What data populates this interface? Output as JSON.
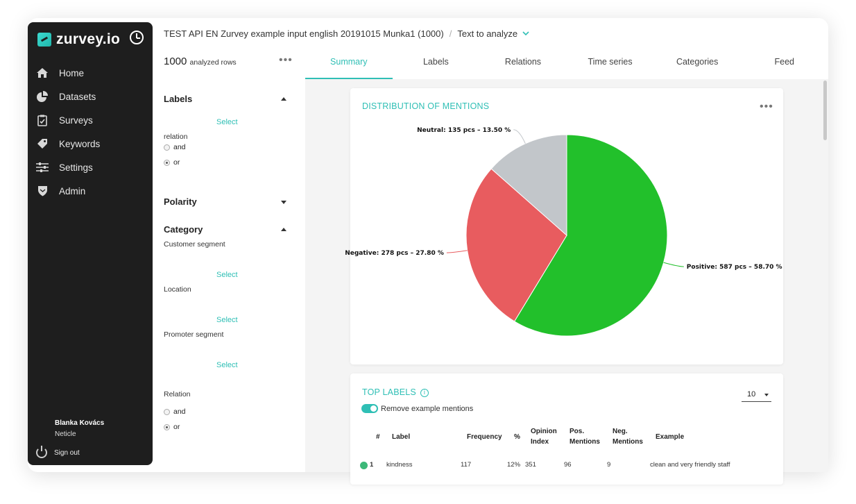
{
  "app": {
    "logo": "zurvey.io"
  },
  "sidebar": {
    "items": [
      {
        "label": "Home",
        "icon": "home-icon"
      },
      {
        "label": "Datasets",
        "icon": "pie-chart-icon"
      },
      {
        "label": "Surveys",
        "icon": "clipboard-icon"
      },
      {
        "label": "Keywords",
        "icon": "tag-icon"
      },
      {
        "label": "Settings",
        "icon": "sliders-icon"
      },
      {
        "label": "Admin",
        "icon": "shield-icon"
      }
    ],
    "user_name": "Blanka Kovács",
    "user_org": "Neticle",
    "signout_label": "Sign out"
  },
  "header": {
    "dataset": "TEST API EN Zurvey example input english 20191015 Munka1 (1000)",
    "separator": "/",
    "field": "Text to analyze"
  },
  "filters": {
    "rows_count": "1000",
    "rows_label": "analyzed rows",
    "labels_title": "Labels",
    "select_label": "Select",
    "relation_label": "relation",
    "and_label": "and",
    "or_label": "or",
    "polarity_title": "Polarity",
    "category_title": "Category",
    "customer_segment": "Customer segment",
    "location": "Location",
    "promoter_segment": "Promoter segment",
    "relation2_label": "Relation"
  },
  "tabs": [
    "Summary",
    "Labels",
    "Relations",
    "Time series",
    "Categories",
    "Feed"
  ],
  "distribution": {
    "title": "DISTRIBUTION OF MENTIONS",
    "more": "•••"
  },
  "chart_data": {
    "type": "pie",
    "title": "DISTRIBUTION OF MENTIONS",
    "slices": [
      {
        "name": "Positive",
        "count": 587,
        "percent": 58.7,
        "color": "#22c02b",
        "label": "Positive: 587 pcs – 58.70 %"
      },
      {
        "name": "Negative",
        "count": 278,
        "percent": 27.8,
        "color": "#e85c5f",
        "label": "Negative: 278 pcs – 27.80 %"
      },
      {
        "name": "Neutral",
        "count": 135,
        "percent": 13.5,
        "color": "#c2c6ca",
        "label": "Neutral: 135 pcs – 13.50 %"
      }
    ]
  },
  "top_labels": {
    "title": "TOP LABELS",
    "info_icon": "i",
    "toggle_label": "Remove example mentions",
    "page_size": "10",
    "columns": [
      "#",
      "Label",
      "Frequency",
      "%",
      "Opinion Index",
      "Pos. Mentions",
      "Neg. Mentions",
      "Example"
    ],
    "rows": [
      {
        "rank": "1",
        "label": "kindness",
        "frequency": "117",
        "percent": "12%",
        "opinion": "351",
        "pos": "96",
        "neg": "9",
        "example": "clean and very friendly staff"
      }
    ]
  }
}
